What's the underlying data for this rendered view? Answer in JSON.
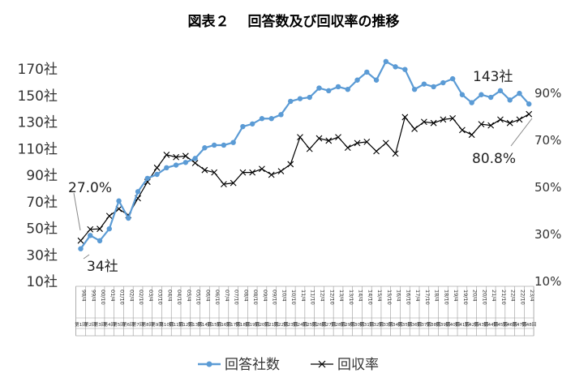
{
  "chart_data": {
    "type": "line",
    "title": "図表２　 回答数及び回収率の推移",
    "categories": [
      "98/4",
      "99/4",
      "00/10",
      "01/4",
      "01/10",
      "02/4",
      "02/10",
      "03/4",
      "03/10",
      "04/4",
      "04/10",
      "05/4",
      "05/10",
      "06/4",
      "06/10",
      "07/4",
      "07/10",
      "08/4",
      "08/10",
      "09/4",
      "09/10",
      "10/4",
      "10/10",
      "11/4",
      "11/10",
      "12/4",
      "12/10",
      "13/4",
      "13/10",
      "14/4",
      "14/10",
      "15/4",
      "15/10",
      "16/4",
      "16/10",
      "17/4",
      "17/10",
      "18/4",
      "18/10",
      "19/4",
      "19/10",
      "20/4",
      "20/10",
      "21/4",
      "21/10",
      "22/4",
      "22/10",
      "23/4"
    ],
    "survey_numbers": [
      "第1回",
      "第2回",
      "第3回",
      "第4回",
      "第5回",
      "第6回",
      "第7回",
      "第8回",
      "第9回",
      "第10回",
      "第11回",
      "第12回",
      "第13回",
      "第14回",
      "第15回",
      "第16回",
      "第17回",
      "第18回",
      "第19回",
      "第20回",
      "第21回",
      "第22回",
      "第23回",
      "第24回",
      "第25回",
      "第26回",
      "第27回",
      "第28回",
      "第29回",
      "第30回",
      "第31回",
      "第32回",
      "第33回",
      "第34回",
      "第35回",
      "第36回",
      "第37回",
      "第38回",
      "第39回",
      "第40回",
      "第41回",
      "第42回",
      "第43回",
      "第44回",
      "第45回",
      "第46回",
      "第47回",
      "第48回"
    ],
    "series": [
      {
        "name": "回答社数",
        "axis": "left",
        "color": "#5B9BD5",
        "marker": "circle",
        "values": [
          34,
          44,
          40,
          49,
          70,
          57,
          77,
          87,
          90,
          95,
          97,
          99,
          102,
          110,
          112,
          112,
          114,
          126,
          128,
          132,
          132,
          135,
          145,
          147,
          148,
          155,
          153,
          156,
          154,
          161,
          167,
          161,
          175,
          171,
          169,
          154,
          158,
          156,
          159,
          162,
          150,
          144,
          150,
          148,
          153,
          146,
          151,
          143
        ]
      },
      {
        "name": "回収率",
        "axis": "right",
        "color": "#000000",
        "marker": "x",
        "values": [
          27.0,
          31.8,
          32.0,
          37.5,
          40.5,
          37.8,
          45.0,
          52.0,
          58.0,
          63.5,
          62.5,
          63.0,
          60.0,
          57.0,
          56.0,
          51.0,
          51.5,
          56.0,
          56.0,
          57.5,
          55.0,
          56.5,
          59.5,
          71.0,
          66.0,
          70.5,
          69.5,
          71.0,
          66.5,
          68.5,
          69.0,
          65.0,
          68.5,
          64.0,
          79.5,
          74.5,
          77.5,
          77.0,
          78.5,
          79.0,
          74.0,
          72.0,
          76.5,
          76.0,
          78.5,
          77.0,
          78.5,
          80.8
        ]
      }
    ],
    "left_axis": {
      "ticks": [
        "170社",
        "150社",
        "130社",
        "110社",
        "90社",
        "70社",
        "50社",
        "30社",
        "10社"
      ],
      "ylim": [
        10,
        170
      ]
    },
    "right_axis": {
      "ticks": [
        "90%",
        "70%",
        "50%",
        "30%",
        "10%"
      ],
      "ylim": [
        10,
        90
      ]
    },
    "annotations": {
      "first_rate": "27.0%",
      "first_count": "34社",
      "last_count": "143社",
      "last_rate": "80.8%"
    },
    "legend_position": "bottom",
    "grid": false
  }
}
